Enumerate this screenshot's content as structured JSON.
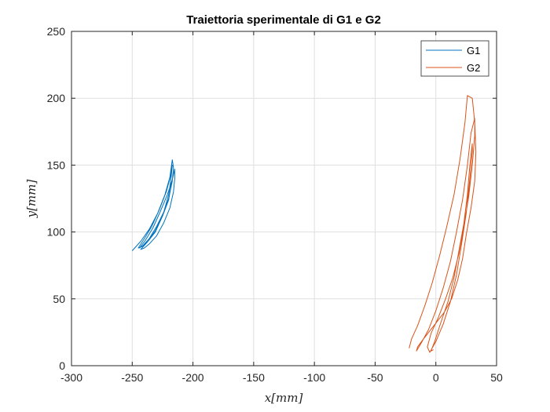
{
  "chart_data": {
    "type": "line",
    "title": "Traiettoria sperimentale di G1 e G2",
    "xlabel": "x[mm]",
    "ylabel": "y[mm]",
    "xlim": [
      -300,
      50
    ],
    "ylim": [
      0,
      250
    ],
    "xticks": [
      "-300",
      "-250",
      "-200",
      "-150",
      "-100",
      "-50",
      "0",
      "50"
    ],
    "yticks": [
      "0",
      "50",
      "100",
      "150",
      "200",
      "250"
    ],
    "grid": true,
    "legend_placement": "top-right",
    "series": [
      {
        "name": "G1",
        "color": "#0072BD",
        "x": [
          -250,
          -243,
          -236,
          -229,
          -223,
          -219,
          -217,
          -216,
          -217,
          -220,
          -225,
          -231,
          -237,
          -242,
          -245,
          -240,
          -234,
          -228,
          -222,
          -218,
          -217,
          -218,
          -220,
          -224,
          -230,
          -236,
          -241,
          -244,
          -239,
          -233,
          -227,
          -221,
          -217,
          -215,
          -215,
          -216,
          -219,
          -224,
          -230,
          -236,
          -240,
          -243,
          -237,
          -231,
          -225,
          -220,
          -218
        ],
        "y": [
          86,
          93,
          102,
          114,
          128,
          141,
          154,
          148,
          138,
          125,
          112,
          100,
          93,
          89,
          88,
          95,
          104,
          116,
          130,
          143,
          150,
          140,
          128,
          115,
          104,
          95,
          90,
          88,
          94,
          103,
          115,
          128,
          139,
          147,
          140,
          130,
          118,
          107,
          97,
          91,
          88,
          87,
          93,
          101,
          112,
          124,
          135
        ]
      },
      {
        "name": "G2",
        "color": "#D95319",
        "x": [
          -22,
          -20,
          -15,
          -9,
          -3,
          3,
          9,
          15,
          20,
          24,
          26,
          30,
          32,
          33,
          32,
          29,
          25,
          22,
          18,
          13,
          7,
          1,
          -5,
          -11,
          -15,
          -16,
          -12,
          -6,
          0,
          6,
          12,
          17,
          22,
          26,
          29,
          32,
          32,
          30,
          27,
          23,
          19,
          14,
          8,
          2,
          -4,
          -7,
          -5,
          0,
          6,
          12,
          17,
          21,
          25,
          28,
          30,
          30,
          28,
          26,
          23,
          19,
          15,
          10,
          4,
          -1,
          -4,
          -2
        ],
        "y": [
          13,
          20,
          30,
          45,
          62,
          82,
          104,
          128,
          155,
          182,
          202,
          200,
          182,
          160,
          138,
          118,
          98,
          80,
          64,
          50,
          40,
          33,
          26,
          19,
          14,
          11,
          17,
          27,
          41,
          58,
          78,
          100,
          124,
          150,
          174,
          185,
          172,
          150,
          126,
          104,
          84,
          66,
          50,
          36,
          24,
          14,
          10,
          18,
          31,
          48,
          68,
          90,
          114,
          140,
          160,
          166,
          150,
          128,
          106,
          86,
          66,
          48,
          32,
          18,
          11,
          12
        ]
      }
    ]
  }
}
